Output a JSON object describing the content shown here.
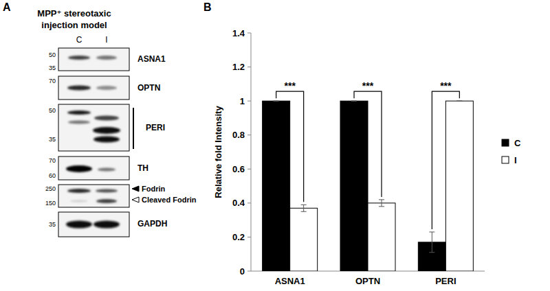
{
  "panel_a": {
    "label": "A",
    "title": [
      "MPP⁺ stereotaxic",
      "injection model"
    ],
    "lanes": [
      "C",
      "I"
    ],
    "blots": [
      {
        "labels": [
          "ASNA1"
        ],
        "markers": [
          50,
          35
        ]
      },
      {
        "labels": [
          "OPTN"
        ],
        "markers": [
          70
        ]
      },
      {
        "labels": [
          "PERI"
        ],
        "markers": [
          50,
          35
        ]
      },
      {
        "labels": [
          "TH"
        ],
        "markers": [
          70,
          60
        ]
      },
      {
        "labels": [
          "Fodrin",
          "Cleaved Fodrin"
        ],
        "markers": [
          250,
          150
        ]
      },
      {
        "labels": [
          "GAPDH"
        ],
        "markers": [
          35
        ]
      }
    ]
  },
  "chart_data": {
    "type": "bar",
    "panel_label": "B",
    "y_label": "Relative fold Intensity",
    "categories": [
      "ASNA1",
      "OPTN",
      "PERI"
    ],
    "series": [
      {
        "name": "C",
        "color": "#000000",
        "values": [
          1,
          1,
          0.17
        ],
        "error": [
          0,
          0,
          0.06
        ]
      },
      {
        "name": "I",
        "color": "#ffffff",
        "values": [
          0.37,
          0.4,
          1
        ],
        "error": [
          0.02,
          0.02,
          0
        ]
      }
    ],
    "annotations": [
      "***",
      "***",
      "***"
    ],
    "ylim": [
      0,
      1.4
    ],
    "yticks": [
      0,
      0.2,
      0.4,
      0.6,
      0.8,
      1,
      1.2,
      1.4
    ],
    "grid": false,
    "legend": "right"
  }
}
